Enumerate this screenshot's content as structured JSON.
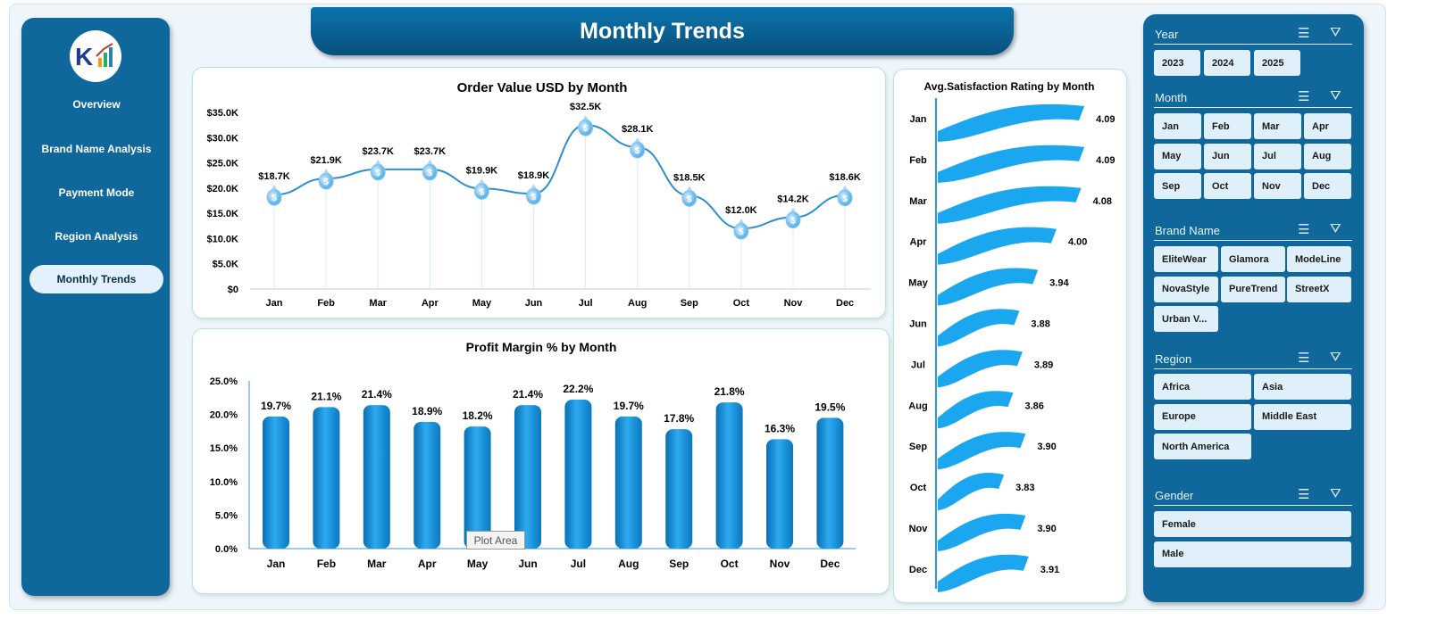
{
  "title": "Monthly Trends",
  "sidebar": {
    "items": [
      {
        "label": "Overview"
      },
      {
        "label": "Brand Name Analysis"
      },
      {
        "label": "Payment Mode"
      },
      {
        "label": "Region  Analysis"
      },
      {
        "label": "Monthly Trends",
        "active": true
      }
    ]
  },
  "colors": {
    "sidebar": "#10679b",
    "accent": "#1ea0e6",
    "line": "#2b8fd0",
    "flag": "#1aa7ef"
  },
  "tooltip": "Plot Area",
  "chart_data": [
    {
      "type": "line",
      "title": "Order Value USD by Month",
      "categories": [
        "Jan",
        "Feb",
        "Mar",
        "Apr",
        "May",
        "Jun",
        "Jul",
        "Aug",
        "Sep",
        "Oct",
        "Nov",
        "Dec"
      ],
      "values": [
        18.7,
        21.9,
        23.7,
        23.7,
        19.9,
        18.9,
        32.5,
        28.1,
        18.5,
        12.0,
        14.2,
        18.6
      ],
      "data_labels": [
        "$18.7K",
        "$21.9K",
        "$23.7K",
        "$23.7K",
        "$19.9K",
        "$18.9K",
        "$32.5K",
        "$28.1K",
        "$18.5K",
        "$12.0K",
        "$14.2K",
        "$18.6K"
      ],
      "yticks": [
        "$0",
        "$5.0K",
        "$10.0K",
        "$15.0K",
        "$20.0K",
        "$25.0K",
        "$30.0K",
        "$35.0K"
      ],
      "ylim": [
        0,
        35
      ],
      "marker": "money-bag-icon"
    },
    {
      "type": "bar",
      "title": "Profit Margin % by Month",
      "categories": [
        "Jan",
        "Feb",
        "Mar",
        "Apr",
        "May",
        "Jun",
        "Jul",
        "Aug",
        "Sep",
        "Oct",
        "Nov",
        "Dec"
      ],
      "values": [
        19.7,
        21.1,
        21.4,
        18.9,
        18.2,
        21.4,
        22.2,
        19.7,
        17.8,
        21.8,
        16.3,
        19.5
      ],
      "data_labels": [
        "19.7%",
        "21.1%",
        "21.4%",
        "18.9%",
        "18.2%",
        "21.4%",
        "22.2%",
        "19.7%",
        "17.8%",
        "21.8%",
        "16.3%",
        "19.5%"
      ],
      "yticks": [
        "0.0%",
        "5.0%",
        "10.0%",
        "15.0%",
        "20.0%",
        "25.0%"
      ],
      "ylim": [
        0,
        25
      ]
    },
    {
      "type": "bar",
      "orientation": "horizontal",
      "title": "Avg.Satisfaction Rating by Month",
      "categories": [
        "Jan",
        "Feb",
        "Mar",
        "Apr",
        "May",
        "Jun",
        "Jul",
        "Aug",
        "Sep",
        "Oct",
        "Nov",
        "Dec"
      ],
      "values": [
        4.09,
        4.09,
        4.08,
        4.0,
        3.94,
        3.88,
        3.89,
        3.86,
        3.9,
        3.83,
        3.9,
        3.91
      ],
      "data_labels": [
        "4.09",
        "4.09",
        "4.08",
        "4.00",
        "3.94",
        "3.88",
        "3.89",
        "3.86",
        "3.90",
        "3.83",
        "3.90",
        "3.91"
      ]
    }
  ],
  "slicers": [
    {
      "title": "Year",
      "items": [
        "2023",
        "2024",
        "2025"
      ]
    },
    {
      "title": "Month",
      "items": [
        "Jan",
        "Feb",
        "Mar",
        "Apr",
        "May",
        "Jun",
        "Jul",
        "Aug",
        "Sep",
        "Oct",
        "Nov",
        "Dec"
      ]
    },
    {
      "title": "Brand Name",
      "items": [
        "EliteWear",
        "Glamora",
        "ModeLine",
        "NovaStyle",
        "PureTrend",
        "StreetX",
        "Urban V..."
      ]
    },
    {
      "title": "Region",
      "items": [
        "Africa",
        "Asia",
        "Europe",
        "Middle East",
        "North America"
      ]
    },
    {
      "title": "Gender",
      "items": [
        "Female",
        "Male"
      ]
    }
  ]
}
